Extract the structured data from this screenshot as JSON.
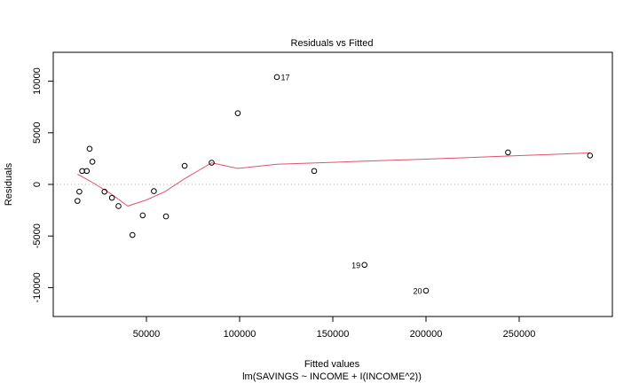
{
  "chart_data": {
    "type": "scatter",
    "title": "Residuals vs Fitted",
    "xlabel": "Fitted values",
    "subtitle": "lm(SAVINGS ~ INCOME + I(INCOME^2))",
    "ylabel": "Residuals",
    "xlim": [
      0,
      300000
    ],
    "ylim": [
      -12800,
      12800
    ],
    "x_ticks": [
      50000,
      100000,
      150000,
      200000,
      250000
    ],
    "x_tick_labels": [
      "50000",
      "100000",
      "150000",
      "200000",
      "250000"
    ],
    "y_ticks": [
      -10000,
      -5000,
      0,
      5000,
      10000
    ],
    "y_tick_labels": [
      "-10000",
      "-5000",
      "0",
      "5000",
      "10000"
    ],
    "zero_line": true,
    "points": [
      {
        "x": 13000,
        "y": -1600
      },
      {
        "x": 14000,
        "y": -700
      },
      {
        "x": 15500,
        "y": 1300
      },
      {
        "x": 18000,
        "y": 1300
      },
      {
        "x": 19500,
        "y": 3450
      },
      {
        "x": 21000,
        "y": 2200
      },
      {
        "x": 27500,
        "y": -700
      },
      {
        "x": 31500,
        "y": -1300
      },
      {
        "x": 35000,
        "y": -2100
      },
      {
        "x": 42500,
        "y": -4900
      },
      {
        "x": 48000,
        "y": -3000
      },
      {
        "x": 54000,
        "y": -650
      },
      {
        "x": 60500,
        "y": -3100
      },
      {
        "x": 70500,
        "y": 1800
      },
      {
        "x": 85000,
        "y": 2100
      },
      {
        "x": 99000,
        "y": 6900
      },
      {
        "x": 120000,
        "y": 10400
      },
      {
        "x": 140000,
        "y": 1300
      },
      {
        "x": 167000,
        "y": -7800
      },
      {
        "x": 200000,
        "y": -10300
      },
      {
        "x": 244000,
        "y": 3100
      },
      {
        "x": 288000,
        "y": 2800
      }
    ],
    "point_labels": [
      {
        "index": 16,
        "label": "17",
        "side": "right"
      },
      {
        "index": 18,
        "label": "19",
        "side": "left"
      },
      {
        "index": 19,
        "label": "20",
        "side": "left"
      }
    ],
    "smoother": {
      "color": "#df536b",
      "points": [
        {
          "x": 13000,
          "y": 1000
        },
        {
          "x": 20000,
          "y": 300
        },
        {
          "x": 30000,
          "y": -800
        },
        {
          "x": 40000,
          "y": -2100
        },
        {
          "x": 50000,
          "y": -1500
        },
        {
          "x": 60000,
          "y": -700
        },
        {
          "x": 70000,
          "y": 500
        },
        {
          "x": 85000,
          "y": 2100
        },
        {
          "x": 99000,
          "y": 1550
        },
        {
          "x": 120000,
          "y": 1950
        },
        {
          "x": 167000,
          "y": 2250
        },
        {
          "x": 200000,
          "y": 2450
        },
        {
          "x": 244000,
          "y": 2750
        },
        {
          "x": 288000,
          "y": 3050
        }
      ]
    }
  }
}
